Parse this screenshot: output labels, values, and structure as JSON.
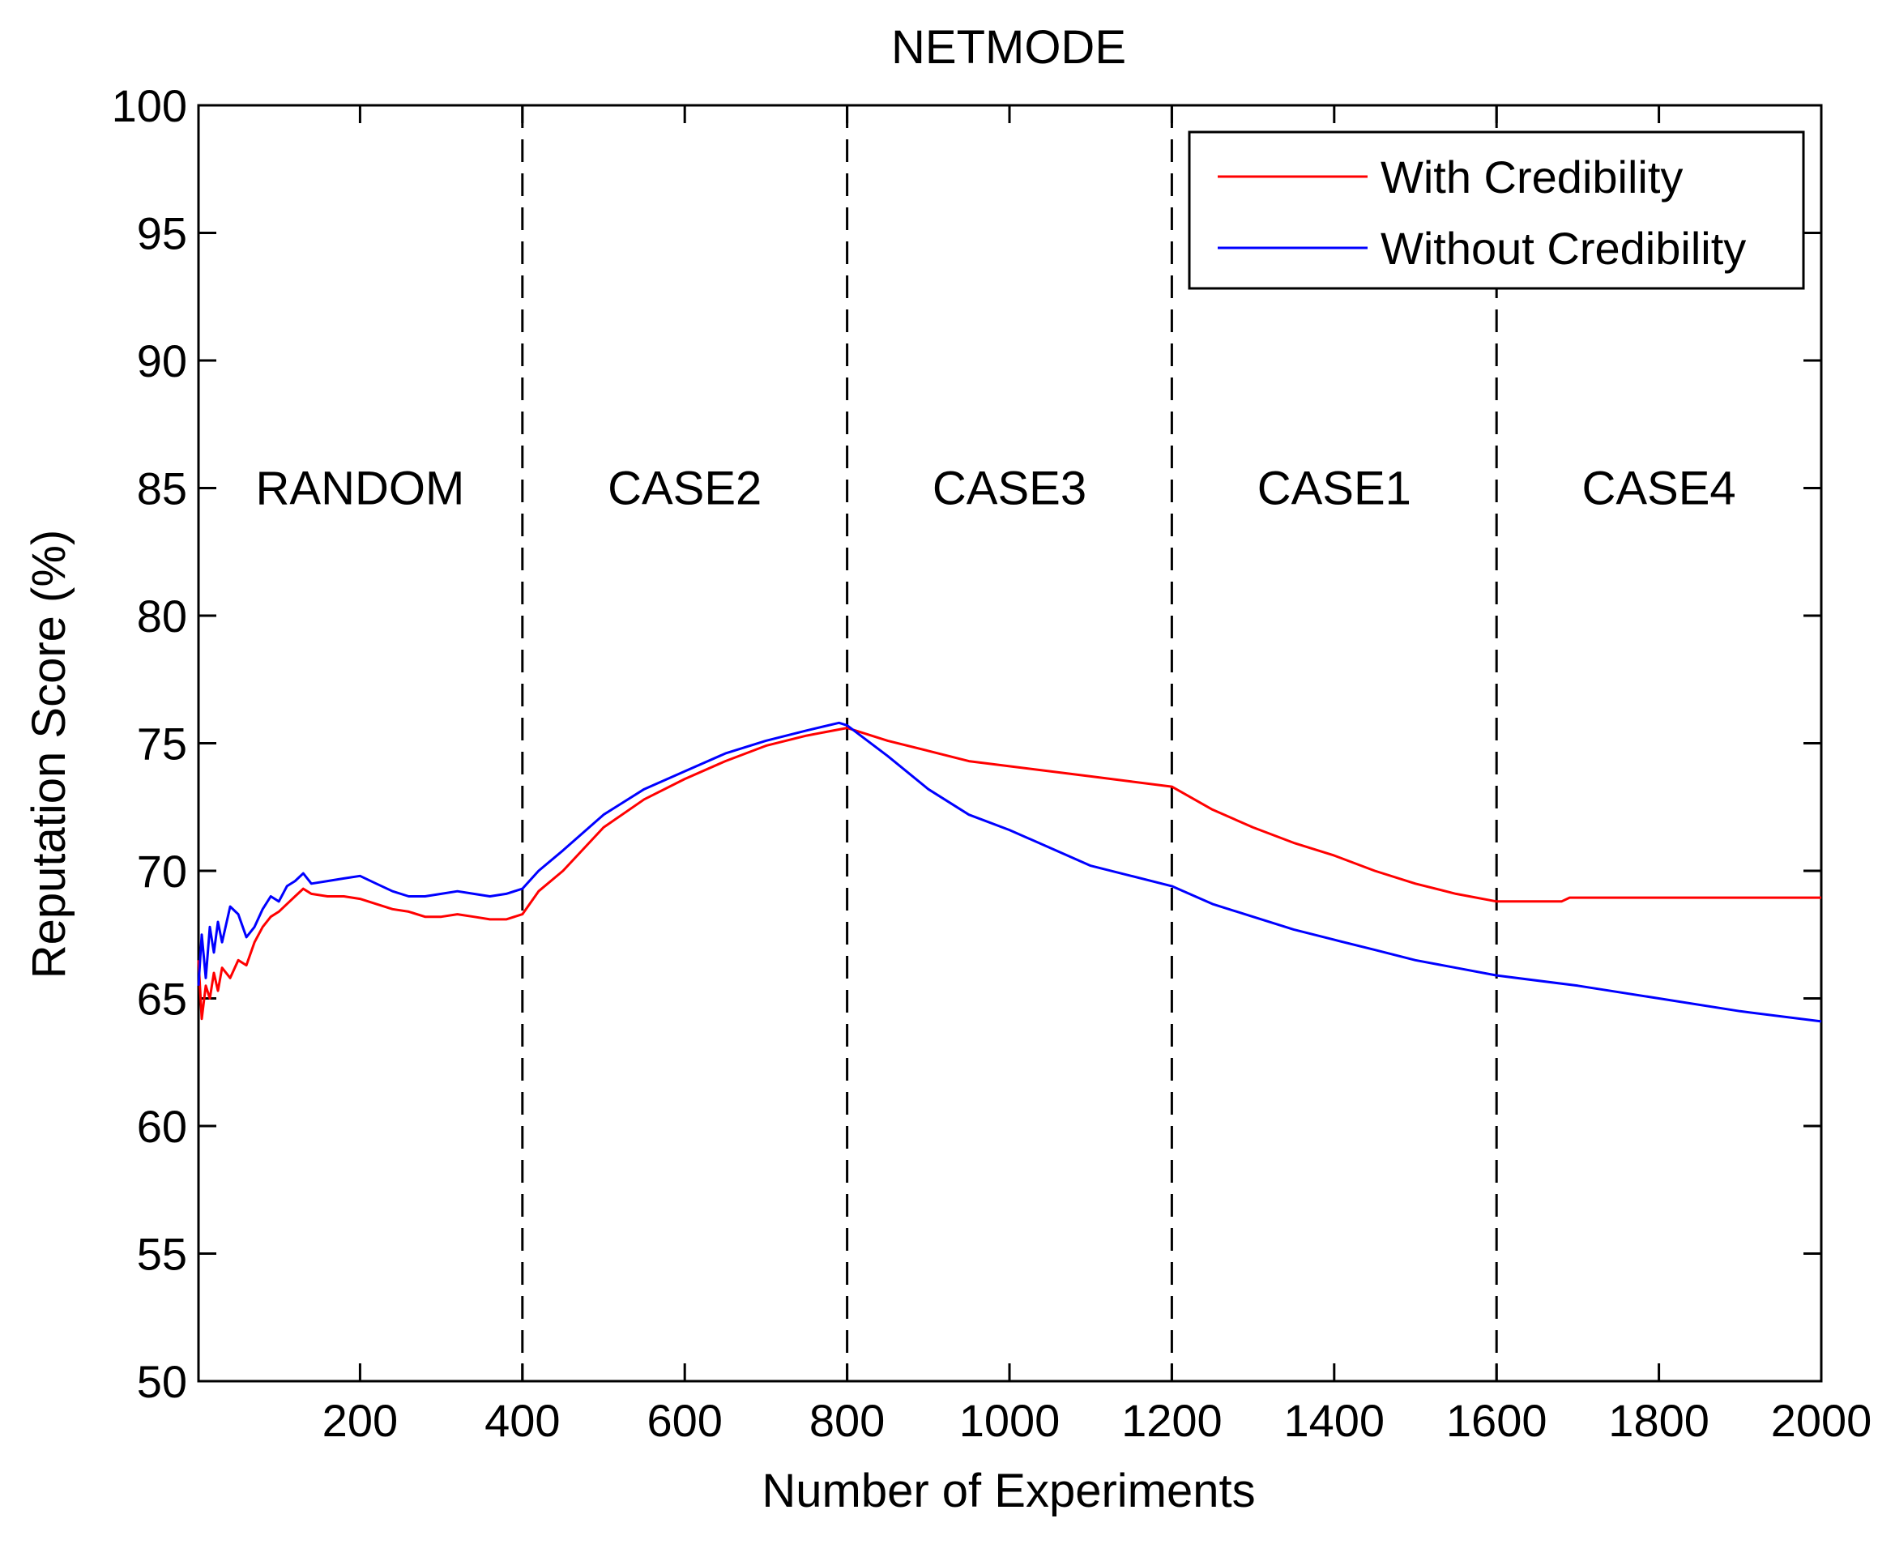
{
  "chart_data": {
    "type": "line",
    "title": "NETMODE",
    "xlabel": "Number of Experiments",
    "ylabel": "Reputation Score (%)",
    "xlim": [
      1,
      2000
    ],
    "ylim": [
      50,
      100
    ],
    "xticks": [
      200,
      400,
      600,
      800,
      1000,
      1200,
      1400,
      1600,
      1800,
      2000
    ],
    "xtick_labels": [
      "200",
      "400",
      "600",
      "800",
      "1000",
      "1200",
      "1400",
      "1600",
      "1800",
      "2000"
    ],
    "yticks": [
      50,
      55,
      60,
      65,
      70,
      75,
      80,
      85,
      90,
      95,
      100
    ],
    "ytick_labels": [
      "50",
      "55",
      "60",
      "65",
      "70",
      "75",
      "80",
      "85",
      "90",
      "95",
      "100"
    ],
    "grid": false,
    "legend_position": "top-right",
    "boundaries": [
      400,
      800,
      1200,
      1600
    ],
    "regions": [
      {
        "label": "RANDOM",
        "x": 200,
        "y": 85
      },
      {
        "label": "CASE2",
        "x": 600,
        "y": 85
      },
      {
        "label": "CASE3",
        "x": 1000,
        "y": 85
      },
      {
        "label": "CASE1",
        "x": 1400,
        "y": 85
      },
      {
        "label": "CASE4",
        "x": 1800,
        "y": 85
      }
    ],
    "series": [
      {
        "name": "With Credibility",
        "color": "#ff0000",
        "x": [
          1,
          5,
          10,
          15,
          20,
          25,
          30,
          40,
          50,
          60,
          70,
          80,
          90,
          100,
          110,
          120,
          130,
          140,
          160,
          180,
          200,
          220,
          240,
          260,
          280,
          300,
          320,
          340,
          360,
          380,
          400,
          420,
          450,
          500,
          550,
          600,
          650,
          700,
          750,
          800,
          850,
          900,
          950,
          1000,
          1050,
          1100,
          1150,
          1200,
          1250,
          1300,
          1350,
          1400,
          1450,
          1500,
          1550,
          1600,
          1680,
          1690,
          1700,
          1800,
          1900,
          2000
        ],
        "y": [
          66.5,
          64.2,
          65.5,
          65.0,
          66.0,
          65.3,
          66.2,
          65.8,
          66.5,
          66.3,
          67.2,
          67.8,
          68.2,
          68.4,
          68.7,
          69.0,
          69.3,
          69.1,
          69.0,
          69.0,
          68.9,
          68.7,
          68.5,
          68.4,
          68.2,
          68.2,
          68.3,
          68.2,
          68.1,
          68.1,
          68.3,
          69.2,
          70.0,
          71.7,
          72.8,
          73.6,
          74.3,
          74.9,
          75.3,
          75.6,
          75.1,
          74.7,
          74.3,
          74.1,
          73.9,
          73.7,
          73.5,
          73.3,
          72.4,
          71.7,
          71.1,
          70.6,
          70.0,
          69.5,
          69.1,
          68.8,
          68.8,
          68.95,
          68.95,
          68.95,
          68.95,
          68.95
        ]
      },
      {
        "name": "Without Credibility",
        "color": "#0000ff",
        "x": [
          1,
          5,
          10,
          15,
          20,
          25,
          30,
          40,
          50,
          60,
          70,
          80,
          90,
          100,
          110,
          120,
          130,
          140,
          160,
          180,
          200,
          220,
          240,
          260,
          280,
          300,
          320,
          340,
          360,
          380,
          400,
          420,
          450,
          500,
          550,
          600,
          650,
          700,
          750,
          790,
          800,
          850,
          900,
          950,
          1000,
          1050,
          1100,
          1150,
          1200,
          1250,
          1300,
          1350,
          1400,
          1450,
          1500,
          1550,
          1600,
          1700,
          1800,
          1900,
          2000
        ],
        "y": [
          65.5,
          67.5,
          65.8,
          67.8,
          66.8,
          68.0,
          67.2,
          68.6,
          68.3,
          67.4,
          67.8,
          68.5,
          69.0,
          68.8,
          69.4,
          69.6,
          69.9,
          69.5,
          69.6,
          69.7,
          69.8,
          69.5,
          69.2,
          69.0,
          69.0,
          69.1,
          69.2,
          69.1,
          69.0,
          69.1,
          69.3,
          70.0,
          70.8,
          72.2,
          73.2,
          73.9,
          74.6,
          75.1,
          75.5,
          75.8,
          75.7,
          74.5,
          73.2,
          72.2,
          71.6,
          70.9,
          70.2,
          69.8,
          69.4,
          68.7,
          68.2,
          67.7,
          67.3,
          66.9,
          66.5,
          66.2,
          65.9,
          65.5,
          65.0,
          64.5,
          64.1
        ]
      }
    ]
  }
}
